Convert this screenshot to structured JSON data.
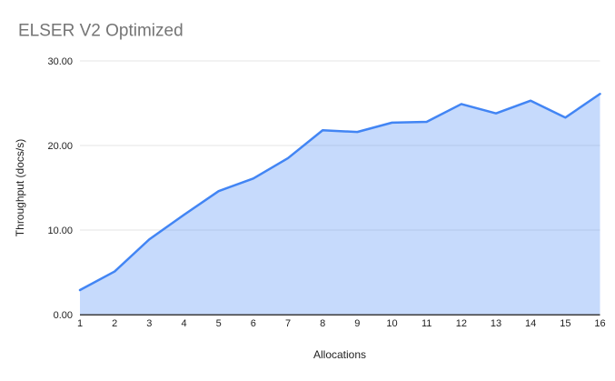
{
  "page": {
    "background": "#ffffff"
  },
  "chart_data": {
    "type": "area",
    "title": "ELSER V2 Optimized",
    "xlabel": "Allocations",
    "ylabel": "Throughput (docs/s)",
    "x": [
      1,
      2,
      3,
      4,
      5,
      6,
      7,
      8,
      9,
      10,
      11,
      12,
      13,
      14,
      15,
      16
    ],
    "values": [
      2.9,
      5.1,
      8.9,
      11.8,
      14.6,
      16.1,
      18.5,
      21.8,
      21.6,
      22.7,
      22.8,
      24.9,
      23.8,
      25.3,
      23.3,
      26.1
    ],
    "xtick_labels": [
      "1",
      "2",
      "3",
      "4",
      "5",
      "6",
      "7",
      "8",
      "9",
      "10",
      "11",
      "12",
      "13",
      "14",
      "15",
      "16"
    ],
    "yticks": [
      0,
      10,
      20,
      30
    ],
    "ytick_labels": [
      "0.00",
      "10.00",
      "20.00",
      "30.00"
    ],
    "ylim": [
      0,
      30
    ],
    "grid": true,
    "legend": "none",
    "colors": {
      "series_line": "#4285f4",
      "series_fill": "#4285f4",
      "series_fill_opacity": 0.3,
      "gridline": "#e6e6e6",
      "axis_line": "#3c3c3c",
      "title_text": "#757575",
      "tick_text": "#1f1f1f",
      "axis_title_text": "#1f1f1f"
    }
  }
}
